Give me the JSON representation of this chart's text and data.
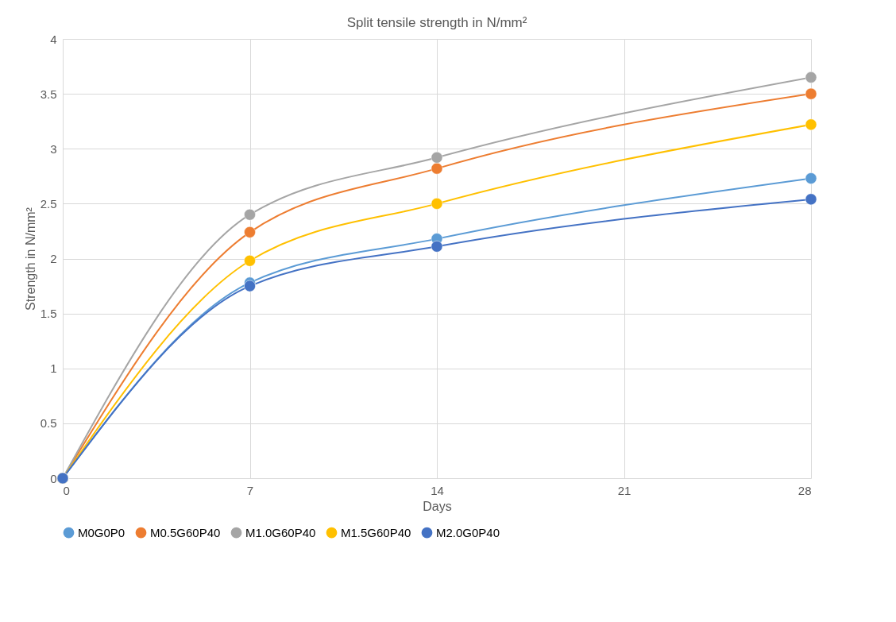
{
  "chart_data": {
    "type": "line",
    "title": "Split tensile strength in N/mm²",
    "xlabel": "Days",
    "ylabel": "Strength in N/mm²",
    "x": [
      0,
      7,
      14,
      28
    ],
    "series": [
      {
        "name": "M0G0P0",
        "color": "#5b9bd5",
        "values": [
          0,
          1.78,
          2.18,
          2.73
        ]
      },
      {
        "name": "M0.5G60P40",
        "color": "#ed7d31",
        "values": [
          0,
          2.24,
          2.82,
          3.5
        ]
      },
      {
        "name": "M1.0G60P40",
        "color": "#a5a5a5",
        "values": [
          0,
          2.4,
          2.92,
          3.65
        ]
      },
      {
        "name": "M1.5G60P40",
        "color": "#ffc000",
        "values": [
          0,
          1.98,
          2.5,
          3.22
        ]
      },
      {
        "name": "M2.0G0P40",
        "color": "#4472c4",
        "values": [
          0,
          1.75,
          2.11,
          2.54
        ]
      }
    ],
    "xlim": [
      0,
      28
    ],
    "xticks": [
      0,
      7,
      14,
      21,
      28
    ],
    "ylim": [
      0,
      4
    ],
    "yticks": [
      0,
      0.5,
      1,
      1.5,
      2,
      2.5,
      3,
      3.5,
      4
    ],
    "grid": true,
    "legend": "bottom",
    "marker": "circle",
    "line_style": "solid"
  }
}
